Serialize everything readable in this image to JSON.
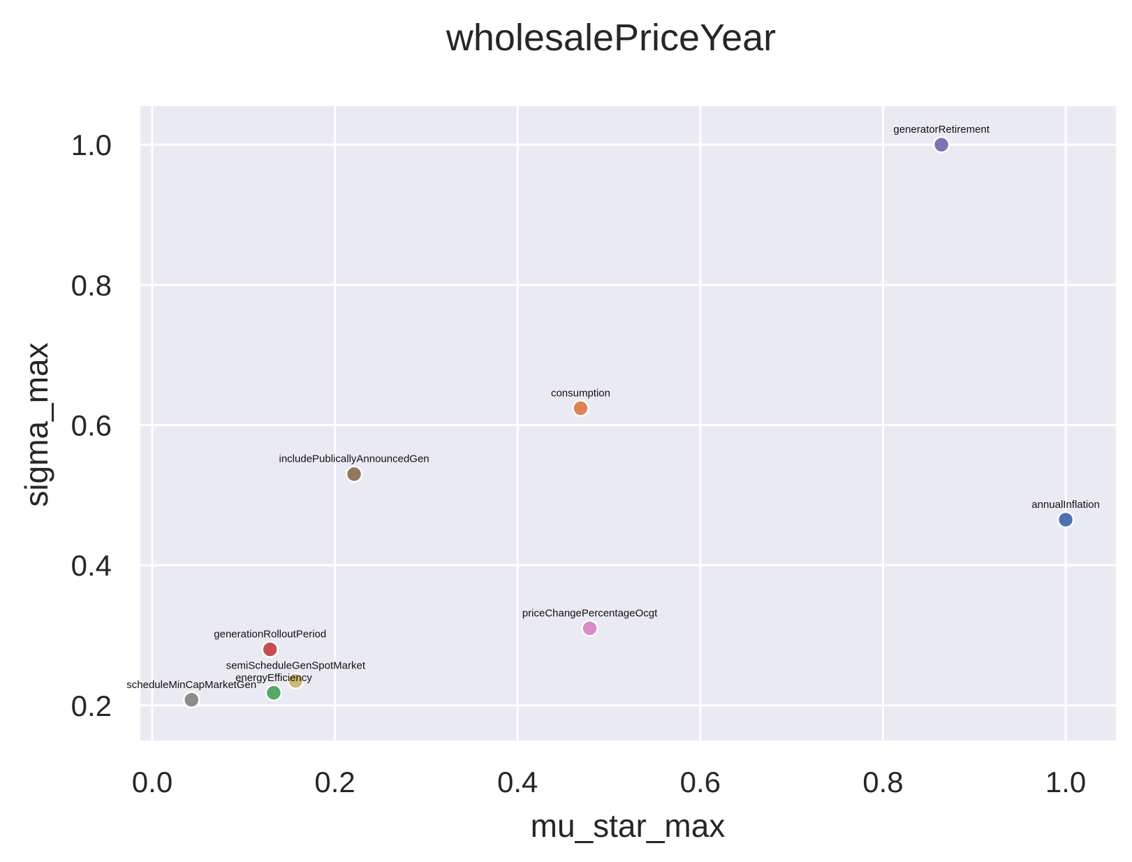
{
  "chart_data": {
    "type": "scatter",
    "title": "wholesalePriceYear",
    "xlabel": "mu_star_max",
    "ylabel": "sigma_max",
    "xlim": [
      -0.013,
      1.055
    ],
    "ylim": [
      0.15,
      1.055
    ],
    "xticks": [
      "0.0",
      "0.2",
      "0.4",
      "0.6",
      "0.8",
      "1.0"
    ],
    "xtick_values": [
      0.0,
      0.2,
      0.4,
      0.6,
      0.8,
      1.0
    ],
    "yticks": [
      "0.2",
      "0.4",
      "0.6",
      "0.8",
      "1.0"
    ],
    "ytick_values": [
      0.2,
      0.4,
      0.6,
      0.8,
      1.0
    ],
    "grid": true,
    "background_color": "#eaeaf2",
    "grid_color": "#ffffff",
    "points": [
      {
        "label": "annualInflation",
        "x": 1.0,
        "y": 0.465,
        "color": "#4c72b0"
      },
      {
        "label": "consumption",
        "x": 0.469,
        "y": 0.624,
        "color": "#dd8452"
      },
      {
        "label": "energyEfficiency",
        "x": 0.133,
        "y": 0.218,
        "color": "#55a868"
      },
      {
        "label": "generationRolloutPeriod",
        "x": 0.129,
        "y": 0.28,
        "color": "#c44e52"
      },
      {
        "label": "generatorRetirement",
        "x": 0.864,
        "y": 1.0,
        "color": "#8172b3"
      },
      {
        "label": "includePublicallyAnnouncedGen",
        "x": 0.221,
        "y": 0.53,
        "color": "#937860"
      },
      {
        "label": "priceChangePercentageOcgt",
        "x": 0.479,
        "y": 0.31,
        "color": "#da8bc3"
      },
      {
        "label": "scheduleMinCapMarketGen",
        "x": 0.043,
        "y": 0.208,
        "color": "#8c8c8c"
      },
      {
        "label": "semiScheduleGenSpotMarket",
        "x": 0.157,
        "y": 0.235,
        "color": "#ccb974"
      }
    ]
  }
}
